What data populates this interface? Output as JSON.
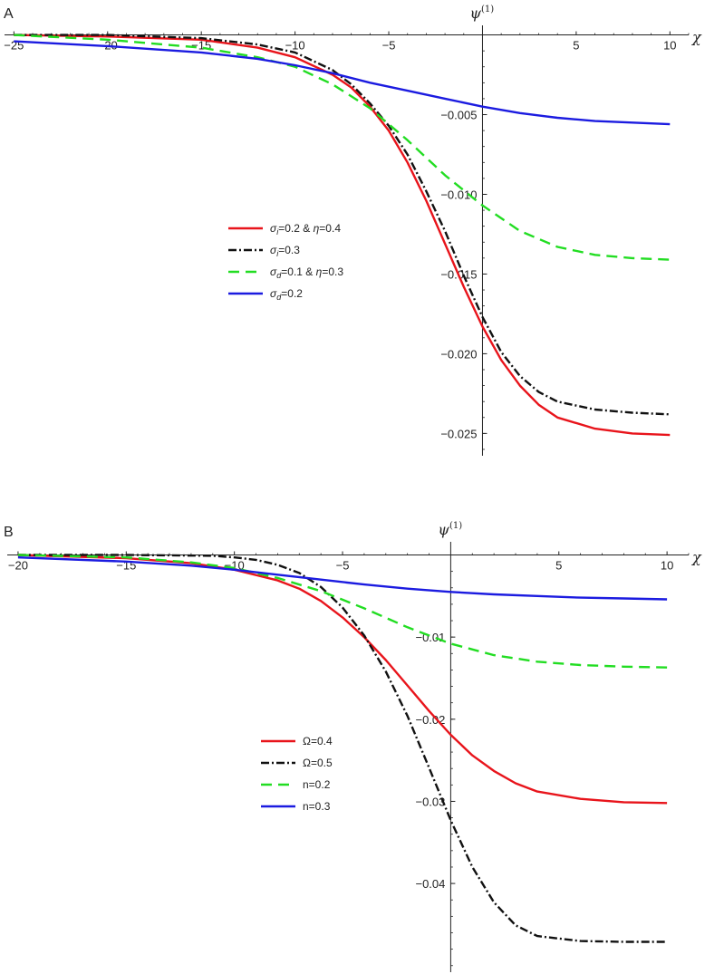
{
  "panels": [
    {
      "label": "A",
      "chart_data": {
        "type": "line",
        "xlabel": "χ",
        "ylabel": "ψ^(1)",
        "xlim": [
          -25.5,
          11
        ],
        "ylim": [
          -0.0264,
          0.0006
        ],
        "xticks": [
          -25,
          -20,
          -15,
          -10,
          -5,
          5,
          10
        ],
        "xtick_labels": [
          "-25",
          "-20",
          "-15",
          "-10",
          "-5",
          "5",
          "10"
        ],
        "yticks": [
          -0.005,
          -0.01,
          -0.015,
          -0.02,
          -0.025
        ],
        "ytick_labels": [
          "-0.005",
          "-0.010",
          "-0.015",
          "-0.020",
          "-0.025"
        ],
        "grid": false,
        "legend_position": "center-left",
        "series": [
          {
            "name": "σi=0.2 & η=0.4",
            "legend_parts": [
              "σ",
              "i",
              "=0.2 & ",
              "η",
              "=0.4"
            ],
            "color": "#e8141b",
            "dash": "solid",
            "x": [
              -25,
              -20,
              -15,
              -12,
              -10,
              -8,
              -7,
              -6,
              -5,
              -4,
              -3,
              -2,
              -1,
              0,
              1,
              2,
              3,
              4,
              6,
              8,
              10
            ],
            "y": [
              0.0,
              -0.0001,
              -0.0003,
              -0.0008,
              -0.0014,
              -0.0025,
              -0.0033,
              -0.0045,
              -0.006,
              -0.008,
              -0.0104,
              -0.0131,
              -0.0158,
              -0.0183,
              -0.0204,
              -0.022,
              -0.0232,
              -0.024,
              -0.0247,
              -0.025,
              -0.0251
            ]
          },
          {
            "name": "σi=0.3",
            "legend_parts": [
              "σ",
              "i",
              "=0.3",
              "",
              ""
            ],
            "color": "#111111",
            "dash": "9,3,2,3",
            "x": [
              -25,
              -20,
              -15,
              -12,
              -10,
              -8,
              -7,
              -6,
              -5,
              -4,
              -3,
              -2,
              -1,
              0,
              1,
              2,
              3,
              4,
              6,
              8,
              10
            ],
            "y": [
              0.0,
              0.0,
              -0.0002,
              -0.0006,
              -0.0011,
              -0.0022,
              -0.0031,
              -0.0043,
              -0.0057,
              -0.0075,
              -0.0098,
              -0.0123,
              -0.0151,
              -0.0177,
              -0.0199,
              -0.0214,
              -0.0224,
              -0.023,
              -0.0235,
              -0.0237,
              -0.0238
            ]
          },
          {
            "name": "σd=0.1 & η=0.3",
            "legend_parts": [
              "σ",
              "d",
              "=0.1 & ",
              "η",
              "=0.3"
            ],
            "color": "#22dd22",
            "dash": "12,7",
            "x": [
              -25,
              -20,
              -15,
              -12,
              -10,
              -8,
              -6,
              -4,
              -2,
              0,
              2,
              4,
              6,
              8,
              10
            ],
            "y": [
              0.0,
              -0.0003,
              -0.0008,
              -0.0014,
              -0.002,
              -0.0031,
              -0.0046,
              -0.0066,
              -0.0088,
              -0.0107,
              -0.0123,
              -0.0133,
              -0.0138,
              -0.014,
              -0.0141
            ]
          },
          {
            "name": "σd=0.2",
            "legend_parts": [
              "σ",
              "d",
              "=0.2",
              "",
              ""
            ],
            "color": "#1b1be0",
            "dash": "solid",
            "x": [
              -25,
              -20,
              -15,
              -12,
              -10,
              -8,
              -6,
              -4,
              -2,
              0,
              2,
              4,
              6,
              8,
              10
            ],
            "y": [
              -0.0004,
              -0.0007,
              -0.0011,
              -0.0015,
              -0.0019,
              -0.0024,
              -0.003,
              -0.0035,
              -0.004,
              -0.0045,
              -0.0049,
              -0.0052,
              -0.0054,
              -0.0055,
              -0.0056
            ]
          }
        ]
      }
    },
    {
      "label": "B",
      "chart_data": {
        "type": "line",
        "xlabel": "χ",
        "ylabel": "ψ^(1)",
        "xlim": [
          -20.5,
          11
        ],
        "ylim": [
          -0.0508,
          0.0016
        ],
        "xticks": [
          -20,
          -15,
          -10,
          -5,
          5,
          10
        ],
        "xtick_labels": [
          "-20",
          "-15",
          "-10",
          "-5",
          "5",
          "10"
        ],
        "yticks": [
          -0.01,
          -0.02,
          -0.03,
          -0.04
        ],
        "ytick_labels": [
          "-0.01",
          "-0.02",
          "-0.03",
          "-0.04"
        ],
        "grid": false,
        "legend_position": "center-left",
        "series": [
          {
            "name": "Ω=0.4",
            "legend_parts": [
              "Ω=0.4"
            ],
            "color": "#e8141b",
            "dash": "solid",
            "x": [
              -20,
              -15,
              -12,
              -10,
              -8,
              -7,
              -6,
              -5,
              -4,
              -3,
              -2,
              -1,
              0,
              1,
              2,
              3,
              4,
              6,
              8,
              10
            ],
            "y": [
              0.0,
              -0.0004,
              -0.001,
              -0.0018,
              -0.0031,
              -0.0041,
              -0.0056,
              -0.0076,
              -0.01,
              -0.0128,
              -0.0159,
              -0.019,
              -0.0219,
              -0.0244,
              -0.0263,
              -0.0278,
              -0.0288,
              -0.0297,
              -0.0301,
              -0.0302
            ]
          },
          {
            "name": "Ω=0.5",
            "legend_parts": [
              "Ω=0.5"
            ],
            "color": "#111111",
            "dash": "9,3,2,3",
            "x": [
              -20,
              -15,
              -11,
              -10,
              -9,
              -8,
              -7,
              -6,
              -5,
              -4,
              -3,
              -2,
              -1,
              0,
              1,
              2,
              3,
              4,
              6,
              8,
              10
            ],
            "y": [
              0.0,
              0.0,
              -0.0001,
              -0.0003,
              -0.0006,
              -0.0012,
              -0.0022,
              -0.0039,
              -0.0064,
              -0.0098,
              -0.0142,
              -0.0196,
              -0.0259,
              -0.0323,
              -0.038,
              -0.0423,
              -0.0451,
              -0.0464,
              -0.047,
              -0.0471,
              -0.0471
            ]
          },
          {
            "name": "n=0.2",
            "legend_parts": [
              "n=0.2"
            ],
            "color": "#22dd22",
            "dash": "12,7",
            "x": [
              -20,
              -15,
              -12,
              -10,
              -8,
              -6,
              -4,
              -2,
              0,
              2,
              4,
              6,
              8,
              10
            ],
            "y": [
              0.0,
              -0.0003,
              -0.0009,
              -0.0016,
              -0.0028,
              -0.0044,
              -0.0065,
              -0.0088,
              -0.0108,
              -0.0122,
              -0.013,
              -0.0134,
              -0.0136,
              -0.0137
            ]
          },
          {
            "name": "n=0.3",
            "legend_parts": [
              "n=0.3"
            ],
            "color": "#1b1be0",
            "dash": "solid",
            "x": [
              -20,
              -15,
              -12,
              -10,
              -8,
              -6,
              -4,
              -2,
              0,
              2,
              4,
              6,
              8,
              10
            ],
            "y": [
              -0.0003,
              -0.0008,
              -0.0013,
              -0.0018,
              -0.0024,
              -0.003,
              -0.0036,
              -0.0041,
              -0.0045,
              -0.0048,
              -0.005,
              -0.0052,
              -0.0053,
              -0.0054
            ]
          }
        ]
      }
    }
  ]
}
